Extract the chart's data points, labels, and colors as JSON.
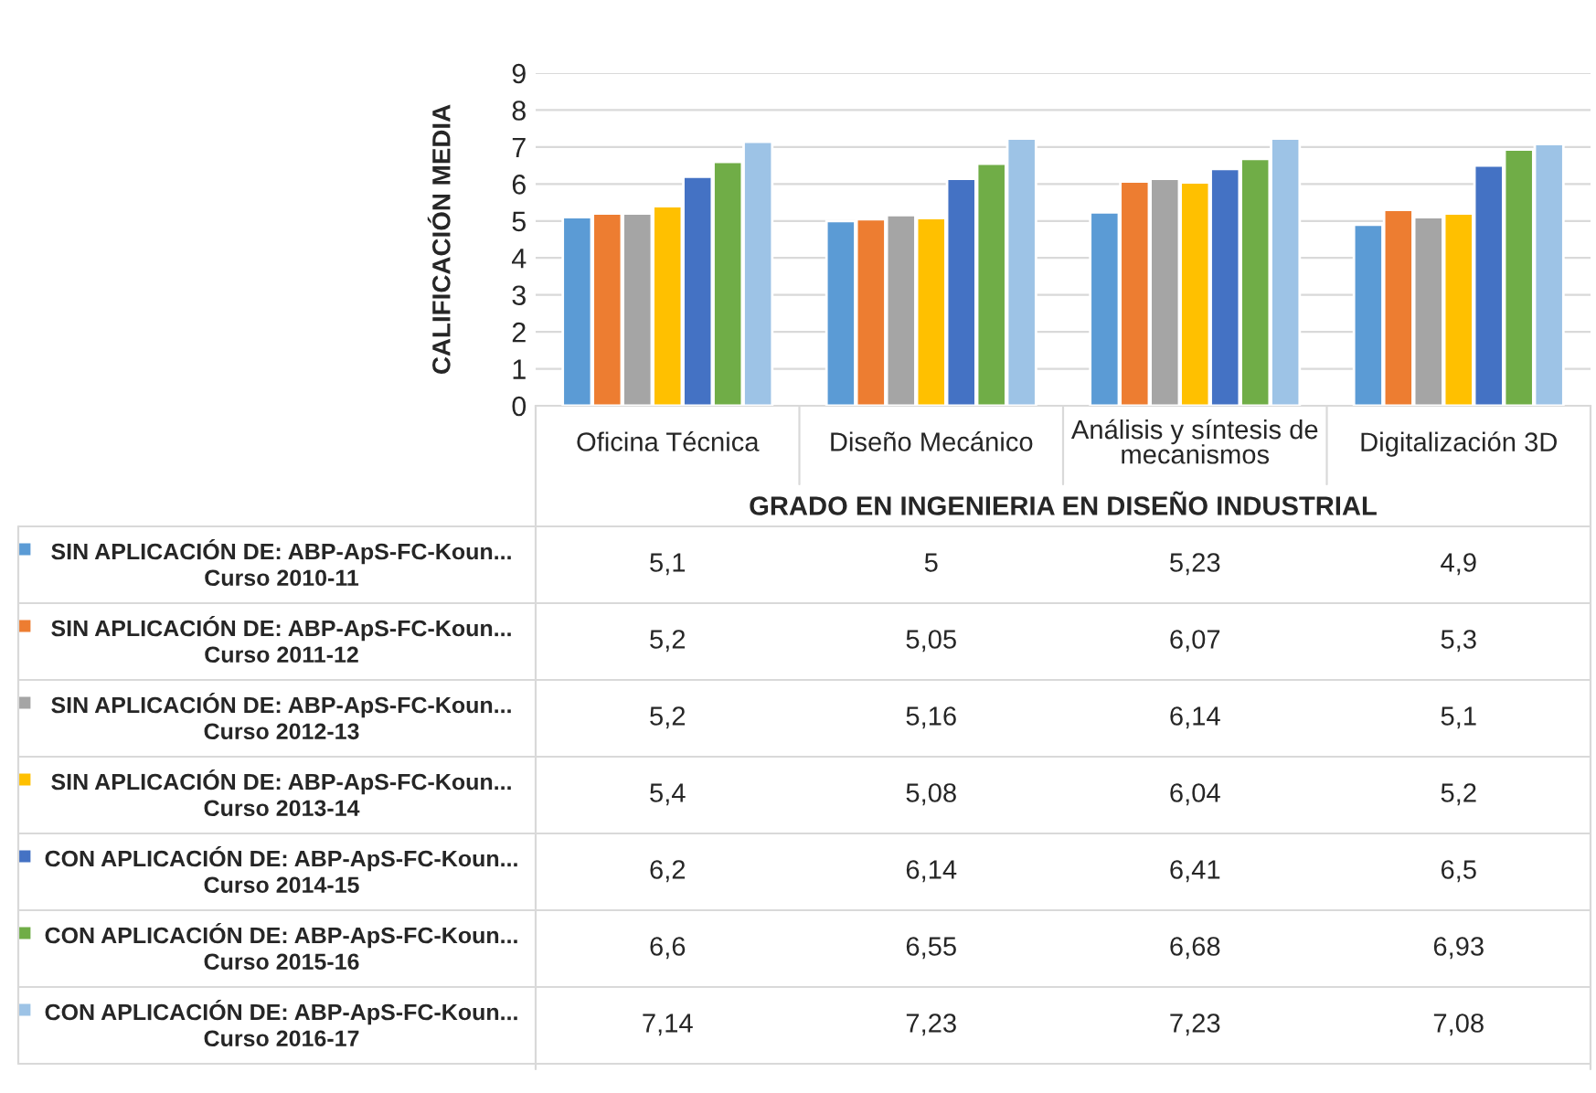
{
  "chart_data": {
    "type": "bar",
    "ylabel": "CALIFICACIÓN MEDIA",
    "xlabel": "GRADO EN INGENIERIA EN DISEÑO INDUSTRIAL",
    "categories": [
      "Oficina Técnica",
      "Diseño Mecánico",
      "Análisis y síntesis de\nmecanismos",
      "Digitalización 3D"
    ],
    "series": [
      {
        "name": "SIN APLICACIÓN DE: ABP-ApS-FC-Koun...\nCurso 2010-11",
        "color": "#5b9bd5",
        "values": [
          5.1,
          5,
          5.23,
          4.9
        ],
        "value_labels": [
          "5,1",
          "5",
          "5,23",
          "4,9"
        ]
      },
      {
        "name": "SIN APLICACIÓN DE: ABP-ApS-FC-Koun...\nCurso 2011-12",
        "color": "#ed7d31",
        "values": [
          5.2,
          5.05,
          6.07,
          5.3
        ],
        "value_labels": [
          "5,2",
          "5,05",
          "6,07",
          "5,3"
        ]
      },
      {
        "name": "SIN APLICACIÓN DE: ABP-ApS-FC-Koun...\nCurso 2012-13",
        "color": "#a5a5a5",
        "values": [
          5.2,
          5.16,
          6.14,
          5.1
        ],
        "value_labels": [
          "5,2",
          "5,16",
          "6,14",
          "5,1"
        ]
      },
      {
        "name": "SIN APLICACIÓN DE: ABP-ApS-FC-Koun...\nCurso 2013-14",
        "color": "#ffc000",
        "values": [
          5.4,
          5.08,
          6.04,
          5.2
        ],
        "value_labels": [
          "5,4",
          "5,08",
          "6,04",
          "5,2"
        ]
      },
      {
        "name": "CON APLICACIÓN DE: ABP-ApS-FC-Koun...\nCurso 2014-15",
        "color": "#4472c4",
        "values": [
          6.2,
          6.14,
          6.41,
          6.5
        ],
        "value_labels": [
          "6,2",
          "6,14",
          "6,41",
          "6,5"
        ]
      },
      {
        "name": "CON APLICACIÓN DE: ABP-ApS-FC-Koun...\nCurso 2015-16",
        "color": "#70ad47",
        "values": [
          6.6,
          6.55,
          6.68,
          6.93
        ],
        "value_labels": [
          "6,6",
          "6,55",
          "6,68",
          "6,93"
        ]
      },
      {
        "name": "CON APLICACIÓN DE: ABP-ApS-FC-Koun...\nCurso 2016-17",
        "color": "#9dc3e6",
        "values": [
          7.14,
          7.23,
          7.23,
          7.08
        ],
        "value_labels": [
          "7,14",
          "7,23",
          "7,23",
          "7,08"
        ]
      }
    ],
    "ylim": [
      0,
      9
    ],
    "yticks": [
      0,
      1,
      2,
      3,
      4,
      5,
      6,
      7,
      8,
      9
    ],
    "grid": "y",
    "legend": "bottom"
  }
}
